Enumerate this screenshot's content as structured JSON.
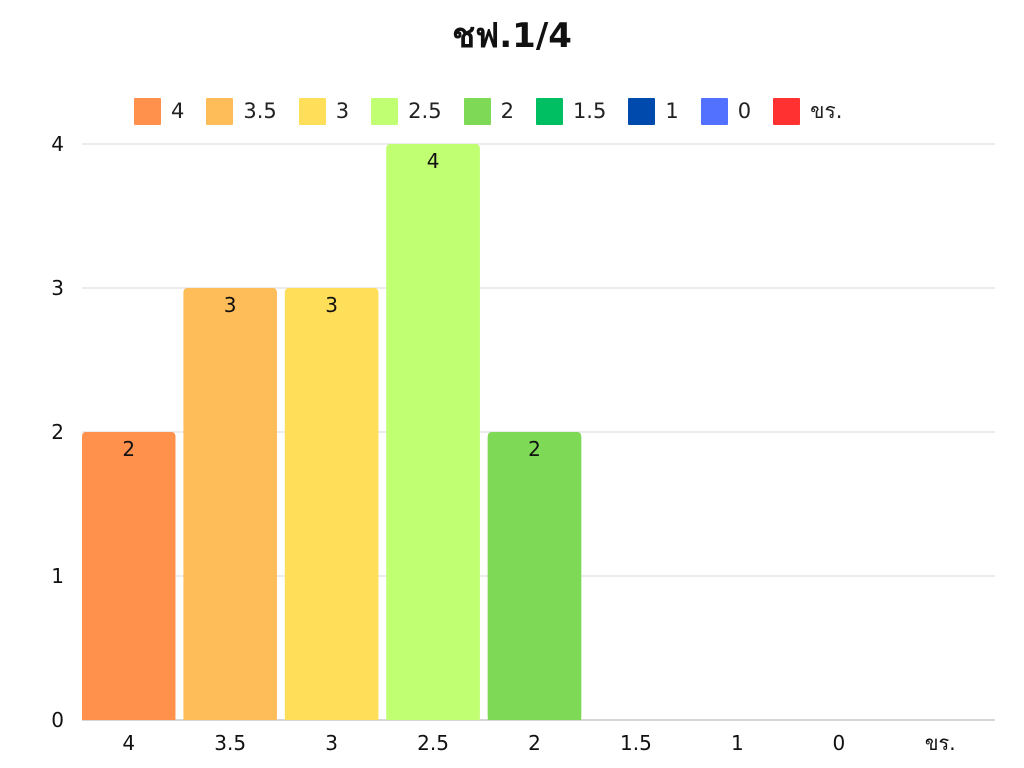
{
  "chart_data": {
    "type": "bar",
    "title": "ชฟ.1/4",
    "categories": [
      "4",
      "3.5",
      "3",
      "2.5",
      "2",
      "1.5",
      "1",
      "0",
      "ขร."
    ],
    "values": [
      2,
      3,
      3,
      4,
      2,
      0,
      0,
      0,
      0
    ],
    "ylim": [
      0,
      4
    ],
    "yticks": [
      "0",
      "1",
      "2",
      "3",
      "4"
    ],
    "grid": true,
    "legend_position": "top",
    "colors": [
      "#ff914d",
      "#ffbd59",
      "#ffde59",
      "#c1ff72",
      "#7ed957",
      "#00bf63",
      "#004aad",
      "#5271ff",
      "#ff3131"
    ],
    "data_labels": [
      "2",
      "3",
      "3",
      "4",
      "2",
      "",
      "",
      "",
      ""
    ],
    "legend": [
      "4",
      "3.5",
      "3",
      "2.5",
      "2",
      "1.5",
      "1",
      "0",
      "ขร."
    ],
    "xlabel": "",
    "ylabel": ""
  }
}
